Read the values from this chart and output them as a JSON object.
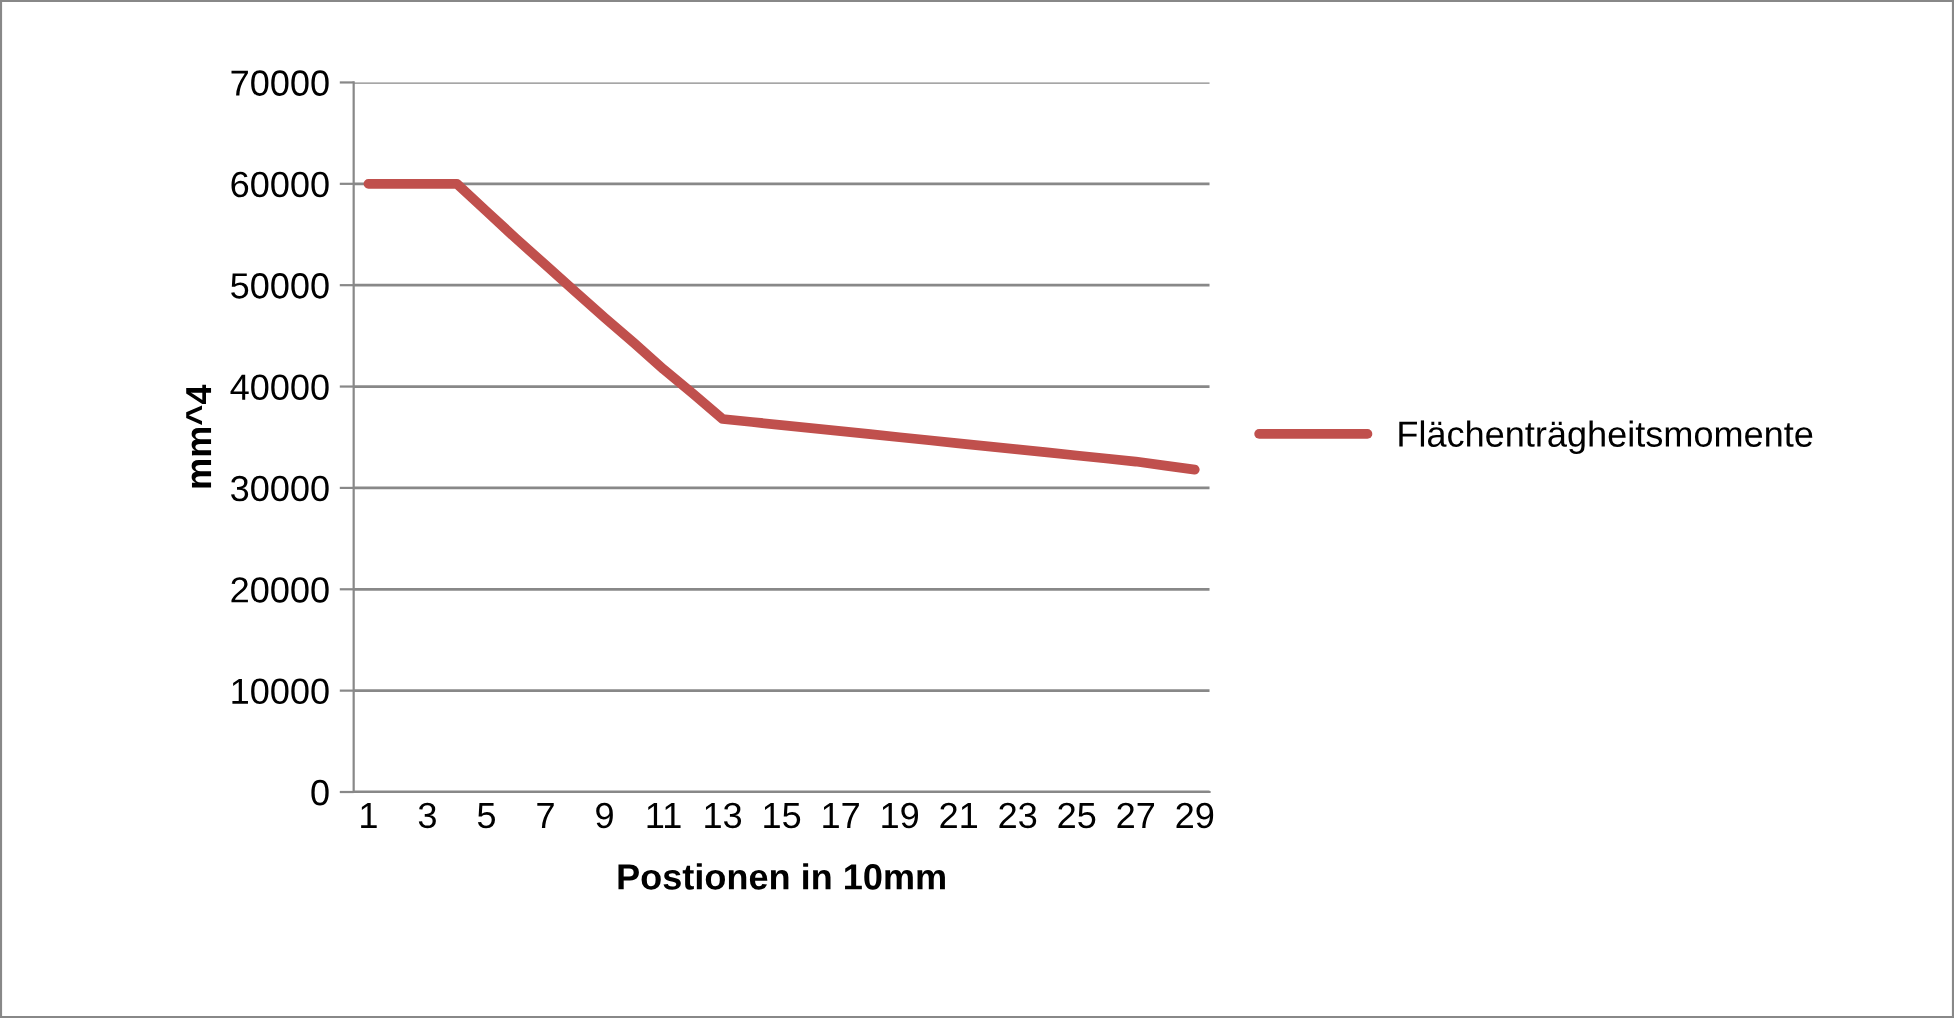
{
  "chart_data": {
    "type": "line",
    "xlabel": "Postionen in 10mm",
    "ylabel": "mm^4",
    "categories": [
      "1",
      null,
      "3",
      null,
      "5",
      null,
      "7",
      null,
      "9",
      null,
      "11",
      null,
      "13",
      null,
      "15",
      null,
      "17",
      null,
      "19",
      null,
      "21",
      null,
      "23",
      null,
      "25",
      null,
      "27",
      null,
      "29"
    ],
    "series": [
      {
        "name": "Flächenträgheitsmomente",
        "color": "#c0504d",
        "values": [
          60000,
          60000,
          60000,
          60000,
          57300,
          54600,
          52000,
          49400,
          46800,
          44300,
          41700,
          39300,
          36800,
          36500,
          36200,
          35900,
          35600,
          35300,
          35000,
          34700,
          34400,
          34100,
          33800,
          33500,
          33200,
          32900,
          32600,
          32200,
          31800
        ]
      }
    ],
    "ylim": [
      0,
      70000
    ],
    "yticks": [
      0,
      10000,
      20000,
      30000,
      40000,
      50000,
      60000,
      70000
    ],
    "grid": "y",
    "legend": "right",
    "marker": "none",
    "line_style": "solid"
  }
}
